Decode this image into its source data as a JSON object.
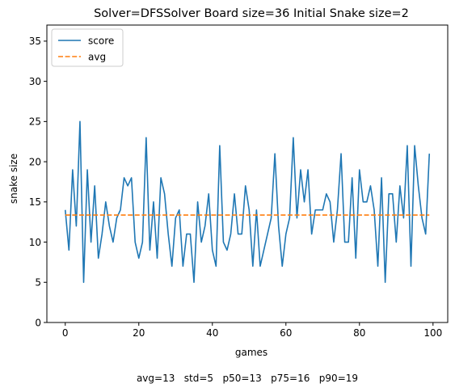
{
  "chart_data": {
    "type": "line",
    "title": "Solver=DFSSolver   Board size=36   Initial Snake size=2",
    "xlabel": "games",
    "ylabel": "snake size",
    "footer": "avg=13   std=5   p50=13   p75=16   p90=19",
    "xlim": [
      -5,
      104
    ],
    "ylim": [
      0,
      37
    ],
    "xticks": [
      0,
      20,
      40,
      60,
      80,
      100
    ],
    "yticks": [
      0,
      5,
      10,
      15,
      20,
      25,
      30,
      35
    ],
    "legend": {
      "placement": "top-left"
    },
    "grid": false,
    "series": [
      {
        "name": "score",
        "color": "#1f77b4",
        "style": "solid",
        "x": [
          0,
          1,
          2,
          3,
          4,
          5,
          6,
          7,
          8,
          9,
          10,
          11,
          12,
          13,
          14,
          15,
          16,
          17,
          18,
          19,
          20,
          21,
          22,
          23,
          24,
          25,
          26,
          27,
          28,
          29,
          30,
          31,
          32,
          33,
          34,
          35,
          36,
          37,
          38,
          39,
          40,
          41,
          42,
          43,
          44,
          45,
          46,
          47,
          48,
          49,
          50,
          51,
          52,
          53,
          54,
          55,
          56,
          57,
          58,
          59,
          60,
          61,
          62,
          63,
          64,
          65,
          66,
          67,
          68,
          69,
          70,
          71,
          72,
          73,
          74,
          75,
          76,
          77,
          78,
          79,
          80,
          81,
          82,
          83,
          84,
          85,
          86,
          87,
          88,
          89,
          90,
          91,
          92,
          93,
          94,
          95,
          96,
          97,
          98,
          99
        ],
        "y": [
          14,
          9,
          19,
          12,
          25,
          5,
          19,
          10,
          17,
          8,
          11,
          15,
          12,
          10,
          13,
          14,
          18,
          17,
          18,
          10,
          8,
          10,
          23,
          9,
          15,
          8,
          18,
          16,
          11,
          7,
          13,
          14,
          7,
          11,
          11,
          5,
          15,
          10,
          12,
          16,
          9,
          7,
          22,
          10,
          9,
          11,
          16,
          11,
          11,
          17,
          14,
          7,
          14,
          7,
          9,
          11,
          13,
          21,
          12,
          7,
          11,
          13,
          23,
          13,
          19,
          15,
          19,
          11,
          14,
          14,
          14,
          16,
          15,
          10,
          14,
          21,
          10,
          10,
          18,
          8,
          19,
          15,
          15,
          17,
          14,
          7,
          18,
          5,
          16,
          16,
          10,
          17,
          13,
          22,
          7,
          22,
          17,
          13,
          11,
          21
        ]
      },
      {
        "name": "avg",
        "color": "#ff7f0e",
        "style": "dashed",
        "x": [
          0,
          99
        ],
        "y": [
          13.37,
          13.37
        ]
      }
    ]
  }
}
